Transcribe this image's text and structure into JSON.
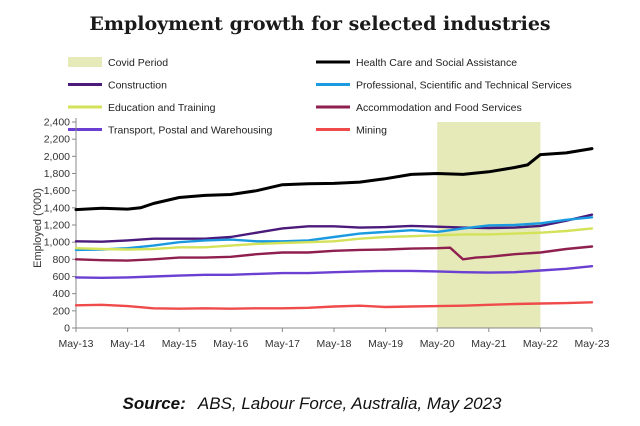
{
  "chart_data": {
    "type": "line",
    "title": "Employment growth for selected industries",
    "ylabel": "Employed ('000)",
    "xlabel": "",
    "ylim": [
      0,
      2400
    ],
    "yticks": [
      0,
      200,
      400,
      600,
      800,
      1000,
      1200,
      1400,
      1600,
      1800,
      2000,
      2200,
      2400
    ],
    "yticklabels": [
      "0",
      "200",
      "400",
      "600",
      "800",
      "1,000",
      "1,200",
      "1,400",
      "1,600",
      "1,800",
      "2,000",
      "2,200",
      "2,400"
    ],
    "x_tick_labels": [
      "May-13",
      "May-14",
      "May-15",
      "May-16",
      "May-17",
      "May-18",
      "May-19",
      "May-20",
      "May-21",
      "May-22",
      "May-23"
    ],
    "x_unit": "quarters since May-13",
    "grid": false,
    "shaded_period": {
      "label": "Covid Period",
      "start": 28,
      "end": 36,
      "color": "#e5eab8"
    },
    "series": [
      {
        "name": "Health Care and Social Assistance",
        "color": "#000000",
        "points": [
          [
            0,
            1380
          ],
          [
            2,
            1395
          ],
          [
            4,
            1385
          ],
          [
            5,
            1400
          ],
          [
            6,
            1450
          ],
          [
            8,
            1520
          ],
          [
            10,
            1545
          ],
          [
            12,
            1555
          ],
          [
            14,
            1600
          ],
          [
            16,
            1670
          ],
          [
            18,
            1680
          ],
          [
            20,
            1685
          ],
          [
            22,
            1700
          ],
          [
            24,
            1740
          ],
          [
            26,
            1790
          ],
          [
            28,
            1800
          ],
          [
            30,
            1790
          ],
          [
            32,
            1820
          ],
          [
            34,
            1870
          ],
          [
            35,
            1900
          ],
          [
            36,
            2020
          ],
          [
            38,
            2040
          ],
          [
            40,
            2090
          ]
        ]
      },
      {
        "name": "Construction",
        "color": "#4b1a7a",
        "points": [
          [
            0,
            1010
          ],
          [
            2,
            1005
          ],
          [
            4,
            1020
          ],
          [
            6,
            1040
          ],
          [
            8,
            1040
          ],
          [
            10,
            1040
          ],
          [
            12,
            1060
          ],
          [
            14,
            1110
          ],
          [
            16,
            1160
          ],
          [
            18,
            1185
          ],
          [
            20,
            1185
          ],
          [
            22,
            1170
          ],
          [
            24,
            1175
          ],
          [
            26,
            1190
          ],
          [
            28,
            1180
          ],
          [
            30,
            1170
          ],
          [
            32,
            1165
          ],
          [
            34,
            1170
          ],
          [
            36,
            1190
          ],
          [
            38,
            1250
          ],
          [
            40,
            1320
          ]
        ]
      },
      {
        "name": "Professional, Scientific and Technical Services",
        "color": "#1b9ae0",
        "points": [
          [
            0,
            910
          ],
          [
            2,
            915
          ],
          [
            4,
            930
          ],
          [
            6,
            960
          ],
          [
            8,
            1000
          ],
          [
            10,
            1020
          ],
          [
            12,
            1030
          ],
          [
            14,
            1010
          ],
          [
            16,
            1010
          ],
          [
            18,
            1020
          ],
          [
            20,
            1060
          ],
          [
            22,
            1100
          ],
          [
            24,
            1120
          ],
          [
            26,
            1140
          ],
          [
            28,
            1120
          ],
          [
            30,
            1160
          ],
          [
            32,
            1195
          ],
          [
            34,
            1200
          ],
          [
            36,
            1220
          ],
          [
            38,
            1260
          ],
          [
            40,
            1290
          ]
        ]
      },
      {
        "name": "Education and Training",
        "color": "#d4e25a",
        "points": [
          [
            0,
            930
          ],
          [
            2,
            920
          ],
          [
            4,
            915
          ],
          [
            6,
            920
          ],
          [
            8,
            940
          ],
          [
            10,
            940
          ],
          [
            12,
            960
          ],
          [
            14,
            980
          ],
          [
            16,
            990
          ],
          [
            18,
            1000
          ],
          [
            20,
            1010
          ],
          [
            22,
            1040
          ],
          [
            24,
            1060
          ],
          [
            26,
            1070
          ],
          [
            28,
            1080
          ],
          [
            30,
            1090
          ],
          [
            32,
            1090
          ],
          [
            34,
            1100
          ],
          [
            36,
            1110
          ],
          [
            38,
            1130
          ],
          [
            40,
            1160
          ]
        ]
      },
      {
        "name": "Accommodation and Food Services",
        "color": "#8e1f4e",
        "points": [
          [
            0,
            800
          ],
          [
            2,
            790
          ],
          [
            4,
            785
          ],
          [
            6,
            800
          ],
          [
            8,
            820
          ],
          [
            10,
            820
          ],
          [
            12,
            830
          ],
          [
            14,
            860
          ],
          [
            16,
            880
          ],
          [
            18,
            880
          ],
          [
            20,
            900
          ],
          [
            22,
            910
          ],
          [
            24,
            915
          ],
          [
            26,
            925
          ],
          [
            28,
            930
          ],
          [
            29,
            935
          ],
          [
            30,
            800
          ],
          [
            31,
            820
          ],
          [
            32,
            830
          ],
          [
            34,
            860
          ],
          [
            36,
            880
          ],
          [
            38,
            920
          ],
          [
            40,
            950
          ]
        ]
      },
      {
        "name": "Transport, Postal and Warehousing",
        "color": "#6a3fd1",
        "points": [
          [
            0,
            590
          ],
          [
            2,
            585
          ],
          [
            4,
            590
          ],
          [
            6,
            600
          ],
          [
            8,
            610
          ],
          [
            10,
            620
          ],
          [
            12,
            620
          ],
          [
            14,
            630
          ],
          [
            16,
            640
          ],
          [
            18,
            640
          ],
          [
            20,
            650
          ],
          [
            22,
            660
          ],
          [
            24,
            665
          ],
          [
            26,
            665
          ],
          [
            28,
            660
          ],
          [
            30,
            650
          ],
          [
            32,
            645
          ],
          [
            34,
            650
          ],
          [
            36,
            670
          ],
          [
            38,
            690
          ],
          [
            40,
            720
          ]
        ]
      },
      {
        "name": "Mining",
        "color": "#ef4b4b",
        "points": [
          [
            0,
            265
          ],
          [
            2,
            270
          ],
          [
            4,
            255
          ],
          [
            6,
            230
          ],
          [
            8,
            225
          ],
          [
            10,
            230
          ],
          [
            12,
            225
          ],
          [
            14,
            230
          ],
          [
            16,
            230
          ],
          [
            18,
            235
          ],
          [
            20,
            250
          ],
          [
            22,
            260
          ],
          [
            24,
            245
          ],
          [
            26,
            250
          ],
          [
            28,
            255
          ],
          [
            30,
            260
          ],
          [
            32,
            270
          ],
          [
            34,
            280
          ],
          [
            36,
            285
          ],
          [
            38,
            290
          ],
          [
            40,
            300
          ]
        ]
      }
    ]
  },
  "source": {
    "prefix": "Source:",
    "text": "ABS, Labour Force, Australia, May 2023"
  }
}
